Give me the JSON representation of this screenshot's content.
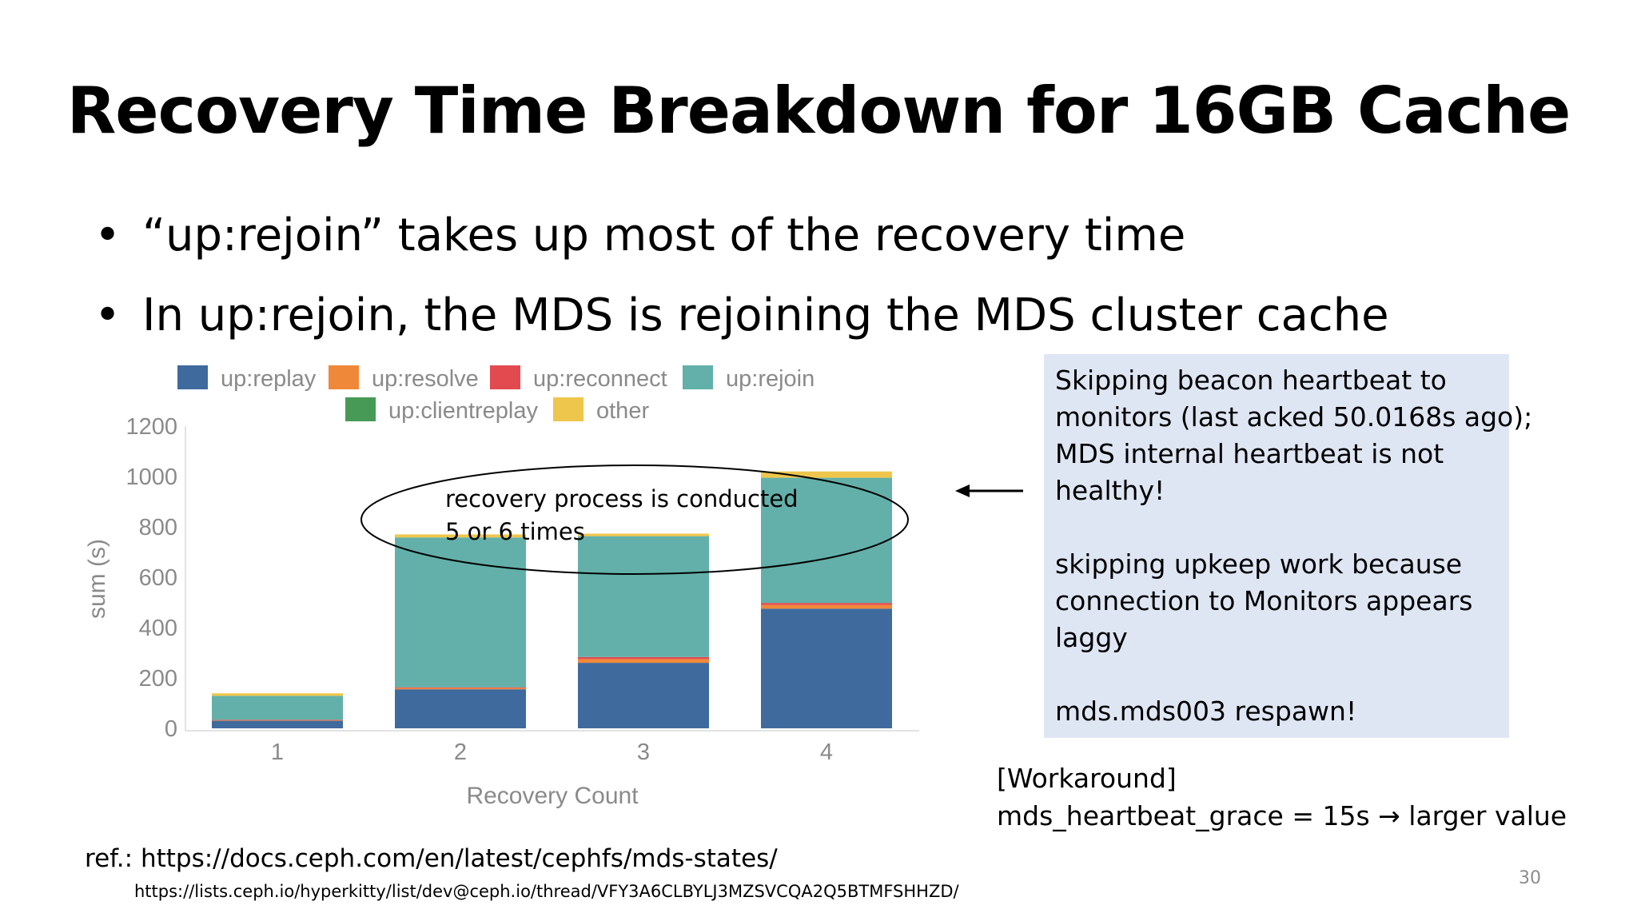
{
  "slide": {
    "title": "Recovery Time Breakdown for 16GB Cache",
    "bullets": [
      "“up:rejoin” takes up most of the recovery time",
      "In up:rejoin, the MDS is rejoining the MDS cluster cache"
    ],
    "annotation": {
      "line1": "recovery process is conducted",
      "line2": "5 or 6 times"
    },
    "note_box": {
      "lines": [
        "Skipping beacon heartbeat to",
        "monitors (last acked 50.0168s ago);",
        "MDS internal heartbeat is not",
        "healthy!",
        "",
        "skipping upkeep work because",
        "connection to Monitors appears",
        "laggy",
        "",
        "mds.mds003 respawn!"
      ]
    },
    "workaround": {
      "label": "[Workaround]",
      "text": "mds_heartbeat_grace = 15s → larger value"
    },
    "references": {
      "line1": "ref.: https://docs.ceph.com/en/latest/cephfs/mds-states/",
      "line2": "https://lists.ceph.io/hyperkitty/list/dev@ceph.io/thread/VFY3A6CLBYLJ3MZSVCQA2Q5BTMFSHHZD/"
    },
    "page_number": "30",
    "colors": {
      "annotation_box": "#dfe6f3"
    }
  },
  "chart_data": {
    "type": "bar",
    "stacked": true,
    "categories": [
      "1",
      "2",
      "3",
      "4"
    ],
    "xlabel": "Recovery Count",
    "ylabel": "sum (s)",
    "ylim": [
      0,
      1200
    ],
    "yticks": [
      0,
      200,
      400,
      600,
      800,
      1000,
      1200
    ],
    "grid": false,
    "legend_position": "top",
    "series": [
      {
        "name": "up:replay",
        "color": "#3e6a9e",
        "values": [
          30,
          155,
          260,
          475
        ]
      },
      {
        "name": "up:resolve",
        "color": "#f0883a",
        "values": [
          2,
          5,
          15,
          15
        ]
      },
      {
        "name": "up:reconnect",
        "color": "#e34a50",
        "values": [
          2,
          3,
          8,
          8
        ]
      },
      {
        "name": "up:rejoin",
        "color": "#62b0a9",
        "values": [
          95,
          595,
          480,
          497
        ]
      },
      {
        "name": "up:clientreplay",
        "color": "#479a55",
        "values": [
          0,
          0,
          0,
          0
        ]
      },
      {
        "name": "other",
        "color": "#efc64c",
        "values": [
          10,
          12,
          10,
          25
        ]
      }
    ]
  }
}
